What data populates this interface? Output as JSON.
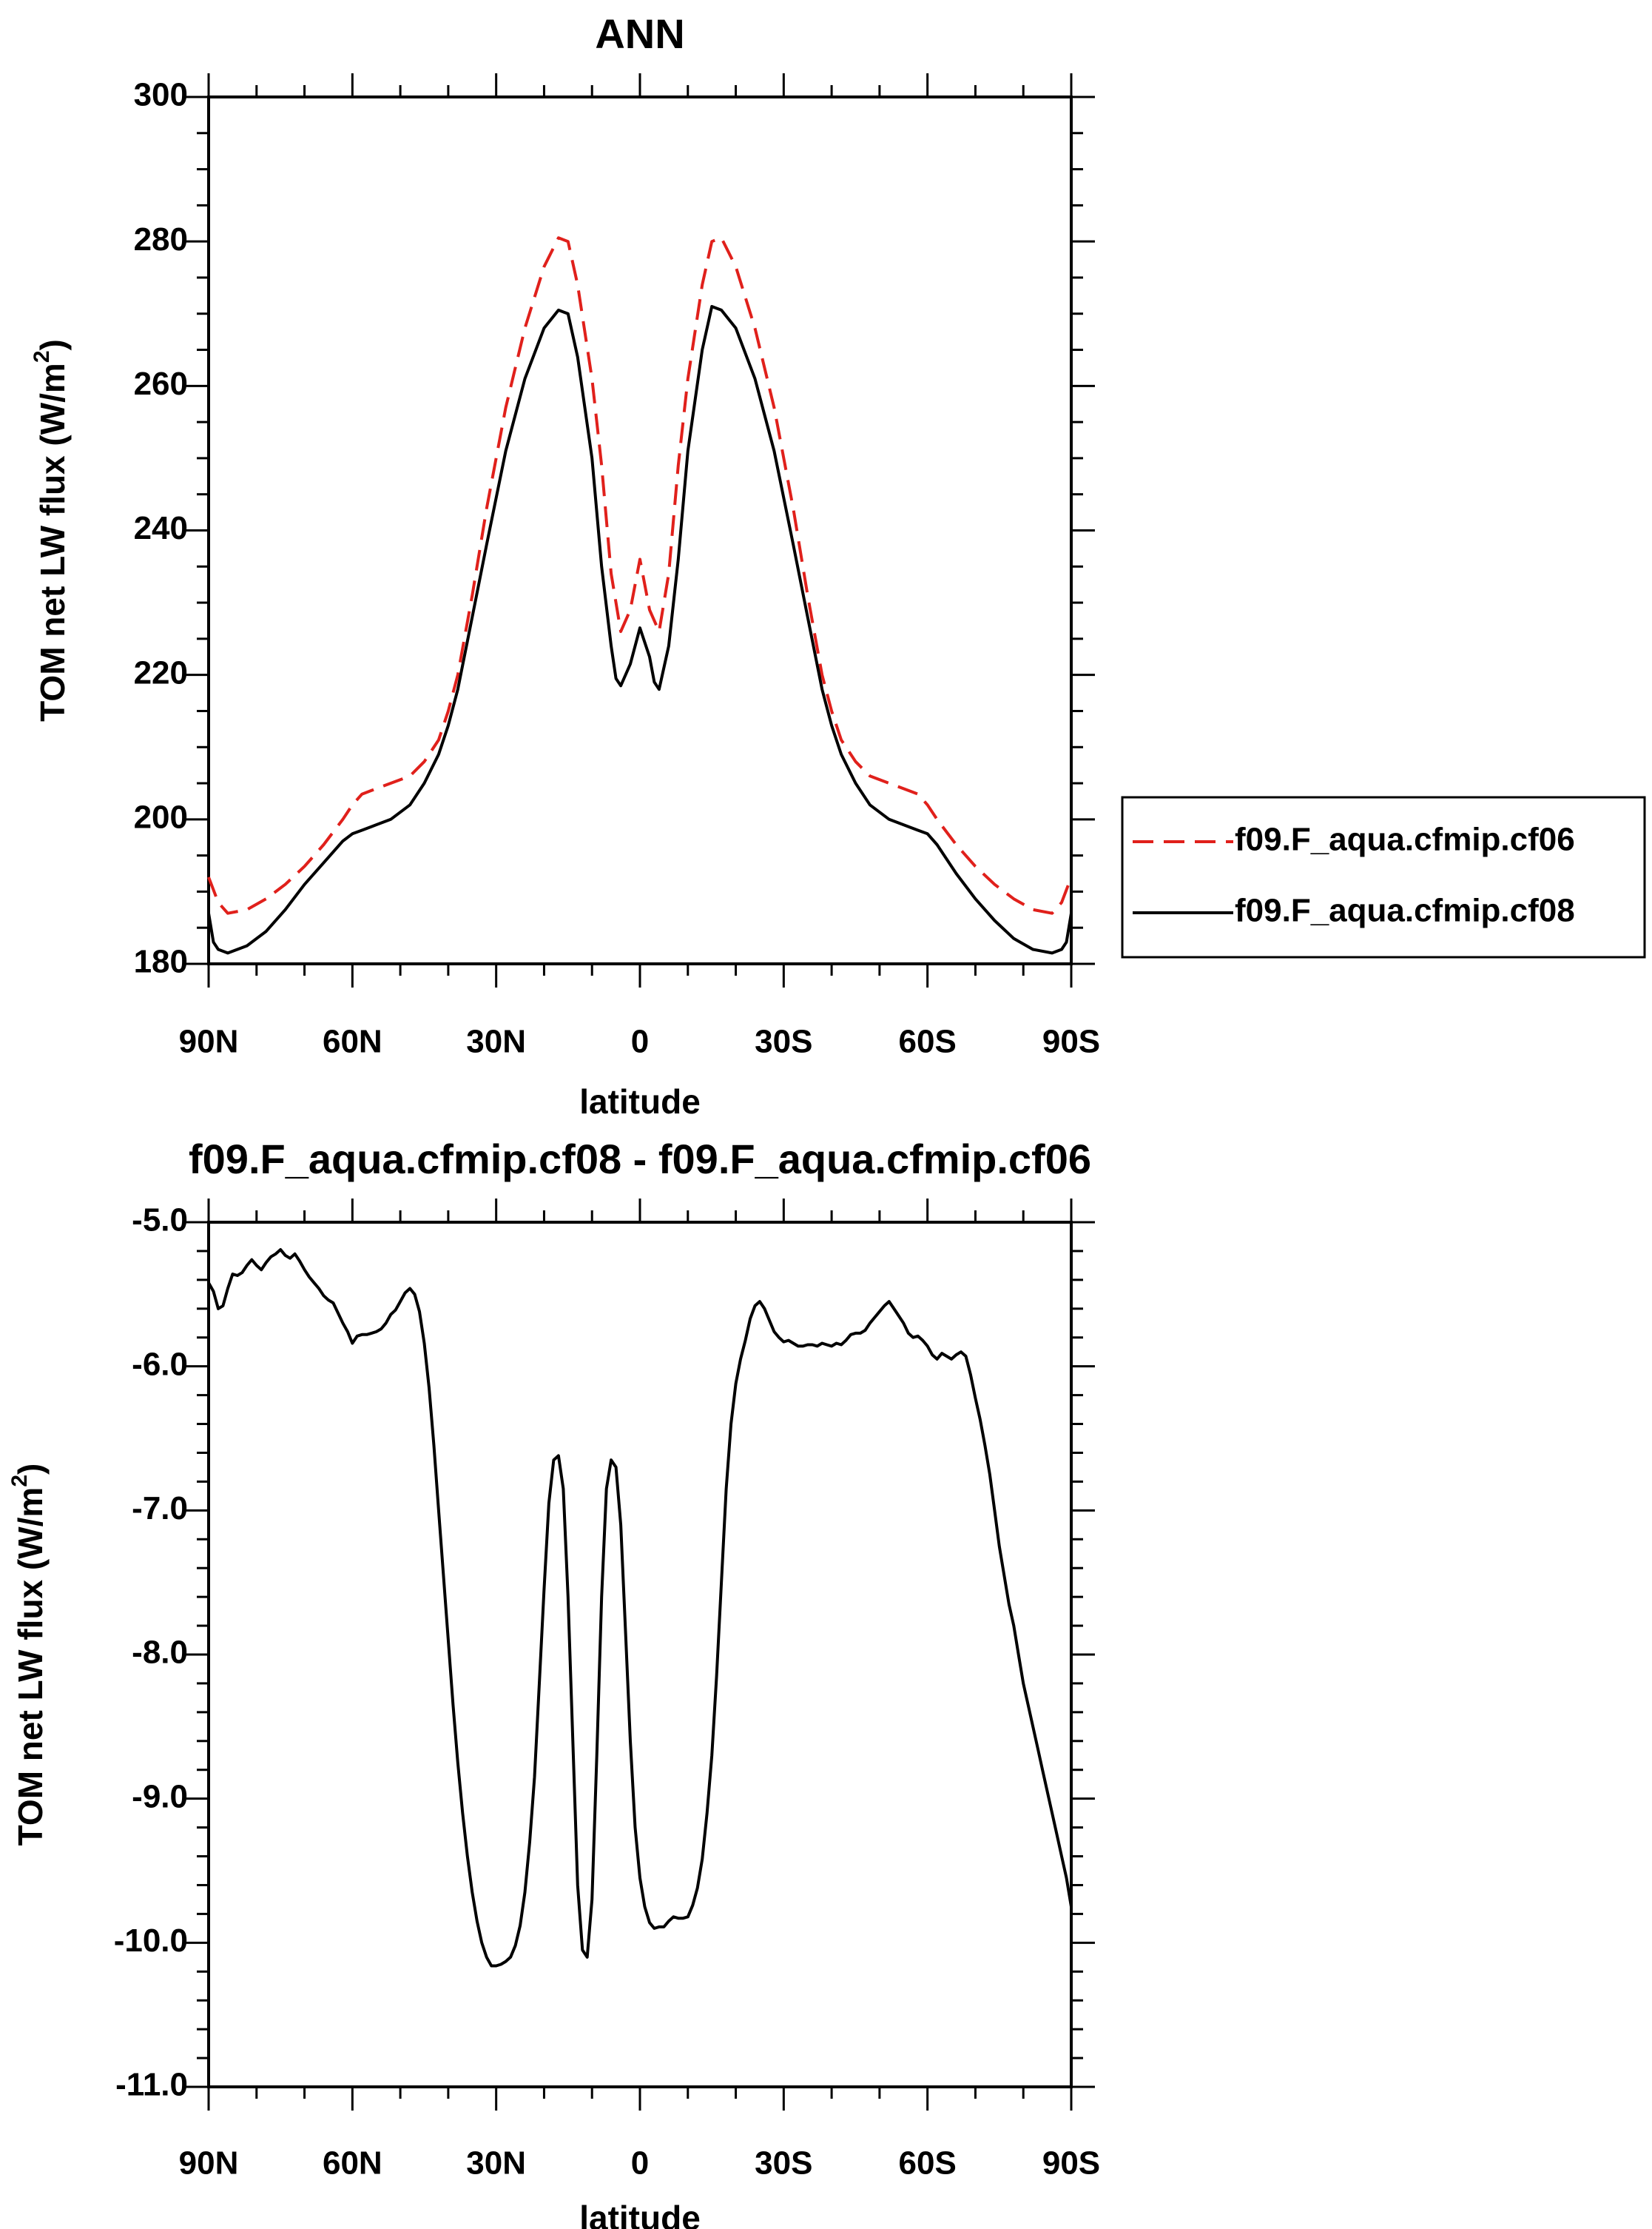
{
  "chart_data": [
    {
      "type": "line",
      "title": "ANN",
      "xlabel": "latitude",
      "ylabel": "TOM net LW flux (W/m",
      "ylabel_sup": "2",
      "ylabel_close": ")",
      "xlim": [
        90,
        -90
      ],
      "ylim": [
        180,
        300
      ],
      "x_ticks": [
        90,
        60,
        30,
        0,
        -30,
        -60,
        -90
      ],
      "x_tick_labels": [
        "90N",
        "60N",
        "30N",
        "0",
        "30S",
        "60S",
        "90S"
      ],
      "y_ticks": [
        180,
        200,
        220,
        240,
        260,
        280,
        300
      ],
      "y_tick_labels": [
        "180",
        "200",
        "220",
        "240",
        "260",
        "280",
        "300"
      ],
      "legend_position": "right",
      "series": [
        {
          "name": "f09.F_aqua.cfmip.cf06",
          "color": "#e0201b",
          "dash": "dashed",
          "x": [
            90,
            88,
            86,
            82,
            78,
            74,
            70,
            66,
            62,
            60,
            58,
            56,
            52,
            48,
            45,
            42,
            40,
            38,
            35,
            32,
            28,
            24,
            20,
            17,
            15,
            13,
            10,
            8,
            6,
            4,
            2,
            0,
            -2,
            -4,
            -6,
            -8,
            -10,
            -13,
            -15,
            -17,
            -20,
            -24,
            -28,
            -32,
            -35,
            -38,
            -40,
            -42,
            -45,
            -48,
            -52,
            -56,
            -58,
            -60,
            -62,
            -66,
            -70,
            -74,
            -78,
            -82,
            -86,
            -88,
            -90
          ],
          "values": [
            192,
            188.5,
            187,
            187.5,
            189,
            191,
            193.5,
            196.5,
            200,
            202,
            203.5,
            204,
            205,
            206,
            208,
            211,
            215,
            220,
            231,
            243,
            257,
            268,
            276.5,
            280.5,
            280,
            274,
            261,
            249,
            234,
            226,
            229,
            236,
            229,
            226,
            234,
            249,
            261,
            274,
            280,
            280.5,
            276.5,
            268,
            257,
            243,
            231,
            220,
            215,
            211,
            208,
            206,
            205,
            204,
            203.5,
            202,
            200,
            196.5,
            193.5,
            191,
            189,
            187.5,
            187,
            188.5,
            192
          ]
        },
        {
          "name": "f09.F_aqua.cfmip.cf08",
          "color": "#000000",
          "dash": "solid",
          "x": [
            90,
            89,
            88,
            86,
            82,
            78,
            74,
            70,
            66,
            62,
            60,
            58,
            56,
            52,
            48,
            45,
            42,
            40,
            38,
            35,
            32,
            28,
            24,
            20,
            17,
            15,
            13,
            10,
            8,
            6,
            5,
            4,
            2,
            0,
            -2,
            -3,
            -4,
            -6,
            -8,
            -10,
            -13,
            -15,
            -17,
            -20,
            -24,
            -28,
            -32,
            -35,
            -38,
            -40,
            -42,
            -45,
            -48,
            -52,
            -56,
            -58,
            -60,
            -62,
            -66,
            -70,
            -74,
            -78,
            -82,
            -86,
            -88,
            -89,
            -90
          ],
          "values": [
            187,
            183,
            182,
            181.5,
            182.5,
            184.5,
            187.5,
            191,
            194,
            197,
            198,
            198.5,
            199,
            200,
            202,
            205,
            209,
            213,
            218,
            228,
            238,
            251,
            261,
            268,
            270.5,
            270,
            264,
            250,
            235,
            224,
            219.5,
            218.5,
            221.5,
            226.5,
            222.5,
            219,
            218,
            224,
            236,
            251,
            265,
            271,
            270.5,
            268,
            261,
            251,
            238,
            228,
            218,
            213,
            209,
            205,
            202,
            200,
            199,
            198.5,
            198,
            196.5,
            192.5,
            189,
            186,
            183.5,
            182,
            181.5,
            182,
            183,
            187
          ]
        }
      ]
    },
    {
      "type": "line",
      "title": "f09.F_aqua.cfmip.cf08 - f09.F_aqua.cfmip.cf06",
      "xlabel": "latitude",
      "ylabel": "TOM net LW flux (W/m",
      "ylabel_sup": "2",
      "ylabel_close": ")",
      "xlim": [
        90,
        -90
      ],
      "ylim": [
        -11.0,
        -5.0
      ],
      "x_ticks": [
        90,
        60,
        30,
        0,
        -30,
        -60,
        -90
      ],
      "x_tick_labels": [
        "90N",
        "60N",
        "30N",
        "0",
        "30S",
        "60S",
        "90S"
      ],
      "y_ticks": [
        -11,
        -10,
        -9,
        -8,
        -7,
        -6,
        -5
      ],
      "y_tick_labels": [
        "-11.0",
        "-10.0",
        "-9.0",
        "-8.0",
        "-7.0",
        "-6.0",
        "-5.0"
      ],
      "series": [
        {
          "name": "f09.F_aqua.cfmip.cf08 - f09.F_aqua.cfmip.cf06",
          "color": "#000000",
          "dash": "solid",
          "x": [
            90,
            89,
            88,
            87,
            86,
            85,
            84,
            83,
            82,
            81,
            80,
            79,
            78,
            77,
            76,
            75,
            74,
            73,
            72,
            71,
            70,
            69,
            68,
            67,
            66,
            65,
            64,
            63,
            62,
            61,
            60,
            59,
            58,
            57,
            56,
            55,
            54,
            53,
            52,
            51,
            50,
            49,
            48,
            47,
            46,
            45,
            44,
            43,
            42,
            41,
            40,
            39,
            38,
            37,
            36,
            35,
            34,
            33,
            32,
            31,
            30,
            29,
            28,
            27,
            26,
            25,
            24,
            23,
            22,
            21,
            20,
            19,
            18,
            17,
            16,
            15,
            14,
            13,
            12,
            11,
            10,
            9,
            8,
            7,
            6,
            5,
            4,
            3,
            2,
            1,
            0,
            -1,
            -2,
            -3,
            -4,
            -5,
            -6,
            -7,
            -8,
            -9,
            -10,
            -11,
            -12,
            -13,
            -14,
            -15,
            -16,
            -17,
            -18,
            -19,
            -20,
            -21,
            -22,
            -23,
            -24,
            -25,
            -26,
            -27,
            -28,
            -29,
            -30,
            -31,
            -32,
            -33,
            -34,
            -35,
            -36,
            -37,
            -38,
            -39,
            -40,
            -41,
            -42,
            -43,
            -44,
            -45,
            -46,
            -47,
            -48,
            -49,
            -50,
            -51,
            -52,
            -53,
            -54,
            -55,
            -56,
            -57,
            -58,
            -59,
            -60,
            -61,
            -62,
            -63,
            -64,
            -65,
            -66,
            -67,
            -68,
            -69,
            -70,
            -71,
            -72,
            -73,
            -74,
            -75,
            -76,
            -77,
            -78,
            -79,
            -80,
            -81,
            -82,
            -83,
            -84,
            -85,
            -86,
            -87,
            -88,
            -89,
            -90
          ],
          "values": [
            -5.42,
            -5.48,
            -5.6,
            -5.58,
            -5.46,
            -5.36,
            -5.37,
            -5.35,
            -5.3,
            -5.26,
            -5.3,
            -5.33,
            -5.28,
            -5.24,
            -5.22,
            -5.19,
            -5.23,
            -5.25,
            -5.22,
            -5.27,
            -5.33,
            -5.38,
            -5.42,
            -5.46,
            -5.51,
            -5.54,
            -5.56,
            -5.63,
            -5.7,
            -5.76,
            -5.84,
            -5.79,
            -5.78,
            -5.78,
            -5.77,
            -5.76,
            -5.74,
            -5.7,
            -5.64,
            -5.61,
            -5.55,
            -5.49,
            -5.46,
            -5.5,
            -5.62,
            -5.84,
            -6.15,
            -6.55,
            -7.0,
            -7.45,
            -7.9,
            -8.35,
            -8.75,
            -9.1,
            -9.4,
            -9.65,
            -9.85,
            -10.0,
            -10.1,
            -10.16,
            -10.16,
            -10.15,
            -10.13,
            -10.1,
            -10.02,
            -9.88,
            -9.65,
            -9.3,
            -8.85,
            -8.2,
            -7.55,
            -6.95,
            -6.65,
            -6.62,
            -6.85,
            -7.6,
            -8.6,
            -9.6,
            -10.05,
            -10.1,
            -9.7,
            -8.7,
            -7.6,
            -6.85,
            -6.65,
            -6.7,
            -7.1,
            -7.85,
            -8.6,
            -9.2,
            -9.55,
            -9.75,
            -9.86,
            -9.9,
            -9.89,
            -9.89,
            -9.85,
            -9.82,
            -9.83,
            -9.83,
            -9.82,
            -9.74,
            -9.62,
            -9.42,
            -9.1,
            -8.7,
            -8.15,
            -7.5,
            -6.85,
            -6.4,
            -6.12,
            -5.95,
            -5.82,
            -5.67,
            -5.58,
            -5.55,
            -5.6,
            -5.68,
            -5.76,
            -5.8,
            -5.83,
            -5.82,
            -5.84,
            -5.86,
            -5.86,
            -5.85,
            -5.85,
            -5.86,
            -5.84,
            -5.85,
            -5.86,
            -5.84,
            -5.85,
            -5.82,
            -5.78,
            -5.77,
            -5.77,
            -5.75,
            -5.7,
            -5.66,
            -5.62,
            -5.58,
            -5.55,
            -5.6,
            -5.65,
            -5.7,
            -5.77,
            -5.8,
            -5.79,
            -5.82,
            -5.86,
            -5.92,
            -5.95,
            -5.91,
            -5.93,
            -5.95,
            -5.92,
            -5.9,
            -5.93,
            -6.06,
            -6.22,
            -6.37,
            -6.55,
            -6.75,
            -7.0,
            -7.25,
            -7.45,
            -7.65,
            -7.8,
            -8.0,
            -8.2,
            -8.35,
            -8.5,
            -8.65,
            -8.8,
            -8.95,
            -9.1,
            -9.25,
            -9.4,
            -9.55,
            -9.75
          ]
        }
      ]
    }
  ]
}
